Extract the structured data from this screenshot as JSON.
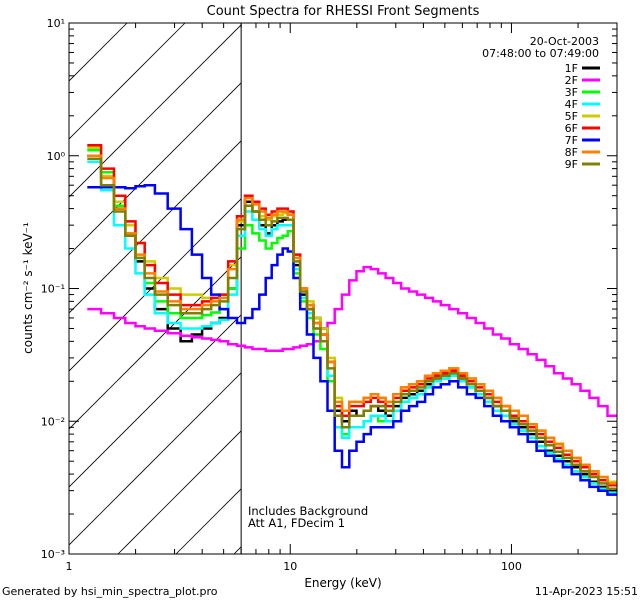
{
  "chart_data": {
    "type": "line",
    "title": "Count Spectra for RHESSI Front Segments",
    "date": "20-Oct-2003",
    "time_range": "07:48:00 to 07:49:00",
    "xlabel": "Energy (keV)",
    "ylabel": "counts cm⁻² s⁻¹ keV⁻¹",
    "xscale": "log",
    "yscale": "log",
    "xlim": [
      1,
      300
    ],
    "ylim": [
      0.001,
      10
    ],
    "x_ticks": [
      {
        "value": 1,
        "label": "1"
      },
      {
        "value": 10,
        "label": "10"
      },
      {
        "value": 100,
        "label": "100"
      }
    ],
    "y_ticks": [
      {
        "value": 10,
        "label": "10¹"
      },
      {
        "value": 1,
        "label": "10⁰"
      },
      {
        "value": 0.1,
        "label": "10⁻¹"
      },
      {
        "value": 0.01,
        "label": "10⁻²"
      },
      {
        "value": 0.001,
        "label": "10⁻³"
      }
    ],
    "hatched_region_x": [
      1,
      6
    ],
    "annotations": [
      "Includes Background",
      "Att A1, FDecim 1"
    ],
    "footer_left": "Generated by hsi_min_spectra_plot.pro",
    "footer_right": "11-Apr-2023 15:51",
    "x": [
      1.3,
      1.5,
      1.7,
      1.9,
      2.1,
      2.3,
      2.6,
      3.0,
      3.4,
      3.8,
      4.2,
      4.6,
      5.0,
      5.5,
      6.0,
      6.5,
      7.0,
      7.5,
      8.0,
      8.5,
      9.0,
      9.5,
      10.0,
      10.7,
      11.5,
      12.3,
      13.2,
      14.2,
      15.3,
      16.5,
      17.8,
      19.2,
      20.7,
      22.3,
      24.0,
      26.0,
      28.0,
      30.5,
      33.0,
      36.0,
      39.0,
      42.5,
      46.0,
      50.0,
      55.0,
      60.0,
      66.0,
      72.0,
      79.0,
      86.0,
      94.0,
      103.0,
      113.0,
      124.0,
      136.0,
      149.0,
      163.0,
      179.0,
      196.0,
      215.0,
      236.0,
      259.0,
      285.0
    ],
    "series": [
      {
        "name": "1F",
        "color": "#000000",
        "values": [
          1.0,
          0.7,
          0.4,
          0.25,
          0.16,
          0.1,
          0.07,
          0.05,
          0.04,
          0.045,
          0.05,
          0.055,
          0.06,
          0.1,
          0.3,
          0.45,
          0.38,
          0.3,
          0.26,
          0.3,
          0.32,
          0.33,
          0.33,
          0.15,
          0.09,
          0.07,
          0.06,
          0.05,
          0.028,
          0.012,
          0.01,
          0.012,
          0.011,
          0.012,
          0.013,
          0.012,
          0.011,
          0.013,
          0.015,
          0.016,
          0.017,
          0.019,
          0.021,
          0.022,
          0.023,
          0.021,
          0.019,
          0.017,
          0.015,
          0.013,
          0.012,
          0.01,
          0.009,
          0.008,
          0.007,
          0.006,
          0.0055,
          0.005,
          0.0045,
          0.004,
          0.0035,
          0.0032,
          0.003
        ]
      },
      {
        "name": "2F",
        "color": "#ff00ff",
        "values": [
          0.07,
          0.065,
          0.06,
          0.055,
          0.052,
          0.05,
          0.048,
          0.046,
          0.044,
          0.043,
          0.042,
          0.041,
          0.04,
          0.038,
          0.037,
          0.036,
          0.035,
          0.035,
          0.034,
          0.034,
          0.034,
          0.035,
          0.035,
          0.036,
          0.037,
          0.038,
          0.04,
          0.045,
          0.055,
          0.07,
          0.09,
          0.115,
          0.135,
          0.145,
          0.14,
          0.13,
          0.12,
          0.11,
          0.1,
          0.095,
          0.09,
          0.085,
          0.08,
          0.075,
          0.07,
          0.065,
          0.06,
          0.055,
          0.05,
          0.045,
          0.042,
          0.038,
          0.035,
          0.032,
          0.029,
          0.026,
          0.023,
          0.021,
          0.019,
          0.017,
          0.015,
          0.013,
          0.011
        ]
      },
      {
        "name": "3F",
        "color": "#00ff00",
        "values": [
          1.1,
          0.75,
          0.42,
          0.26,
          0.17,
          0.11,
          0.08,
          0.065,
          0.06,
          0.06,
          0.063,
          0.066,
          0.07,
          0.1,
          0.2,
          0.3,
          0.26,
          0.23,
          0.2,
          0.22,
          0.24,
          0.25,
          0.27,
          0.13,
          0.08,
          0.06,
          0.045,
          0.035,
          0.02,
          0.009,
          0.008,
          0.009,
          0.009,
          0.01,
          0.011,
          0.01,
          0.01,
          0.012,
          0.014,
          0.015,
          0.016,
          0.018,
          0.02,
          0.021,
          0.022,
          0.02,
          0.018,
          0.016,
          0.014,
          0.012,
          0.011,
          0.009,
          0.0085,
          0.0075,
          0.0065,
          0.0058,
          0.0052,
          0.0047,
          0.0042,
          0.0038,
          0.0034,
          0.0031,
          0.0029
        ]
      },
      {
        "name": "4F",
        "color": "#00ffff",
        "values": [
          0.9,
          0.55,
          0.3,
          0.2,
          0.13,
          0.09,
          0.065,
          0.055,
          0.05,
          0.05,
          0.052,
          0.055,
          0.058,
          0.09,
          0.25,
          0.38,
          0.33,
          0.28,
          0.25,
          0.28,
          0.3,
          0.3,
          0.3,
          0.14,
          0.085,
          0.065,
          0.05,
          0.04,
          0.022,
          0.009,
          0.0075,
          0.009,
          0.009,
          0.01,
          0.011,
          0.011,
          0.01,
          0.012,
          0.014,
          0.015,
          0.016,
          0.018,
          0.02,
          0.021,
          0.022,
          0.02,
          0.018,
          0.016,
          0.014,
          0.012,
          0.011,
          0.0095,
          0.0085,
          0.0075,
          0.0065,
          0.0058,
          0.0052,
          0.0047,
          0.0042,
          0.0038,
          0.0034,
          0.0031,
          0.0029
        ]
      },
      {
        "name": "5F",
        "color": "#cccc00",
        "values": [
          1.15,
          0.7,
          0.45,
          0.3,
          0.22,
          0.16,
          0.12,
          0.1,
          0.09,
          0.09,
          0.085,
          0.085,
          0.09,
          0.15,
          0.32,
          0.42,
          0.38,
          0.35,
          0.33,
          0.35,
          0.36,
          0.37,
          0.36,
          0.18,
          0.1,
          0.08,
          0.06,
          0.05,
          0.03,
          0.015,
          0.012,
          0.014,
          0.014,
          0.015,
          0.016,
          0.015,
          0.014,
          0.016,
          0.018,
          0.019,
          0.02,
          0.022,
          0.023,
          0.024,
          0.025,
          0.023,
          0.021,
          0.019,
          0.017,
          0.015,
          0.013,
          0.012,
          0.011,
          0.0095,
          0.0085,
          0.0075,
          0.0068,
          0.006,
          0.0053,
          0.0047,
          0.0042,
          0.0038,
          0.0035
        ]
      },
      {
        "name": "6F",
        "color": "#ff0000",
        "values": [
          1.2,
          0.8,
          0.5,
          0.32,
          0.22,
          0.15,
          0.11,
          0.09,
          0.075,
          0.075,
          0.08,
          0.085,
          0.09,
          0.16,
          0.35,
          0.5,
          0.45,
          0.4,
          0.36,
          0.38,
          0.4,
          0.4,
          0.38,
          0.18,
          0.1,
          0.075,
          0.055,
          0.045,
          0.028,
          0.013,
          0.011,
          0.013,
          0.013,
          0.014,
          0.015,
          0.014,
          0.013,
          0.015,
          0.017,
          0.018,
          0.019,
          0.021,
          0.022,
          0.023,
          0.024,
          0.022,
          0.02,
          0.018,
          0.016,
          0.014,
          0.013,
          0.011,
          0.01,
          0.009,
          0.008,
          0.007,
          0.0063,
          0.0056,
          0.005,
          0.0045,
          0.004,
          0.0036,
          0.0033
        ]
      },
      {
        "name": "7F",
        "color": "#0000ff",
        "values": [
          0.58,
          0.58,
          0.58,
          0.57,
          0.59,
          0.6,
          0.52,
          0.4,
          0.28,
          0.18,
          0.12,
          0.09,
          0.07,
          0.06,
          0.055,
          0.06,
          0.07,
          0.09,
          0.12,
          0.15,
          0.18,
          0.2,
          0.19,
          0.12,
          0.07,
          0.045,
          0.03,
          0.02,
          0.012,
          0.006,
          0.0045,
          0.006,
          0.007,
          0.008,
          0.009,
          0.009,
          0.009,
          0.01,
          0.012,
          0.013,
          0.014,
          0.016,
          0.018,
          0.019,
          0.02,
          0.018,
          0.016,
          0.015,
          0.013,
          0.011,
          0.01,
          0.009,
          0.008,
          0.007,
          0.006,
          0.0055,
          0.005,
          0.0045,
          0.004,
          0.0036,
          0.0032,
          0.003,
          0.0028
        ]
      },
      {
        "name": "8F",
        "color": "#ff8000",
        "values": [
          1.0,
          0.68,
          0.4,
          0.26,
          0.18,
          0.13,
          0.095,
          0.08,
          0.07,
          0.07,
          0.075,
          0.08,
          0.085,
          0.14,
          0.33,
          0.48,
          0.43,
          0.38,
          0.34,
          0.36,
          0.38,
          0.38,
          0.36,
          0.17,
          0.1,
          0.075,
          0.055,
          0.045,
          0.028,
          0.014,
          0.012,
          0.014,
          0.014,
          0.015,
          0.016,
          0.015,
          0.014,
          0.016,
          0.018,
          0.019,
          0.02,
          0.022,
          0.023,
          0.024,
          0.025,
          0.023,
          0.021,
          0.019,
          0.017,
          0.015,
          0.013,
          0.012,
          0.011,
          0.0095,
          0.0085,
          0.0075,
          0.0067,
          0.006,
          0.0053,
          0.0047,
          0.0042,
          0.0038,
          0.0034
        ]
      },
      {
        "name": "9F",
        "color": "#808000",
        "values": [
          0.95,
          0.6,
          0.38,
          0.25,
          0.17,
          0.12,
          0.09,
          0.075,
          0.065,
          0.065,
          0.07,
          0.075,
          0.08,
          0.12,
          0.28,
          0.42,
          0.38,
          0.33,
          0.3,
          0.32,
          0.34,
          0.34,
          0.33,
          0.16,
          0.095,
          0.07,
          0.05,
          0.04,
          0.025,
          0.011,
          0.009,
          0.011,
          0.011,
          0.012,
          0.013,
          0.013,
          0.012,
          0.014,
          0.016,
          0.017,
          0.018,
          0.02,
          0.021,
          0.022,
          0.023,
          0.021,
          0.019,
          0.017,
          0.015,
          0.013,
          0.012,
          0.0105,
          0.0095,
          0.0085,
          0.0075,
          0.0066,
          0.0059,
          0.0053,
          0.0047,
          0.0042,
          0.0038,
          0.0034,
          0.0031
        ]
      }
    ]
  }
}
